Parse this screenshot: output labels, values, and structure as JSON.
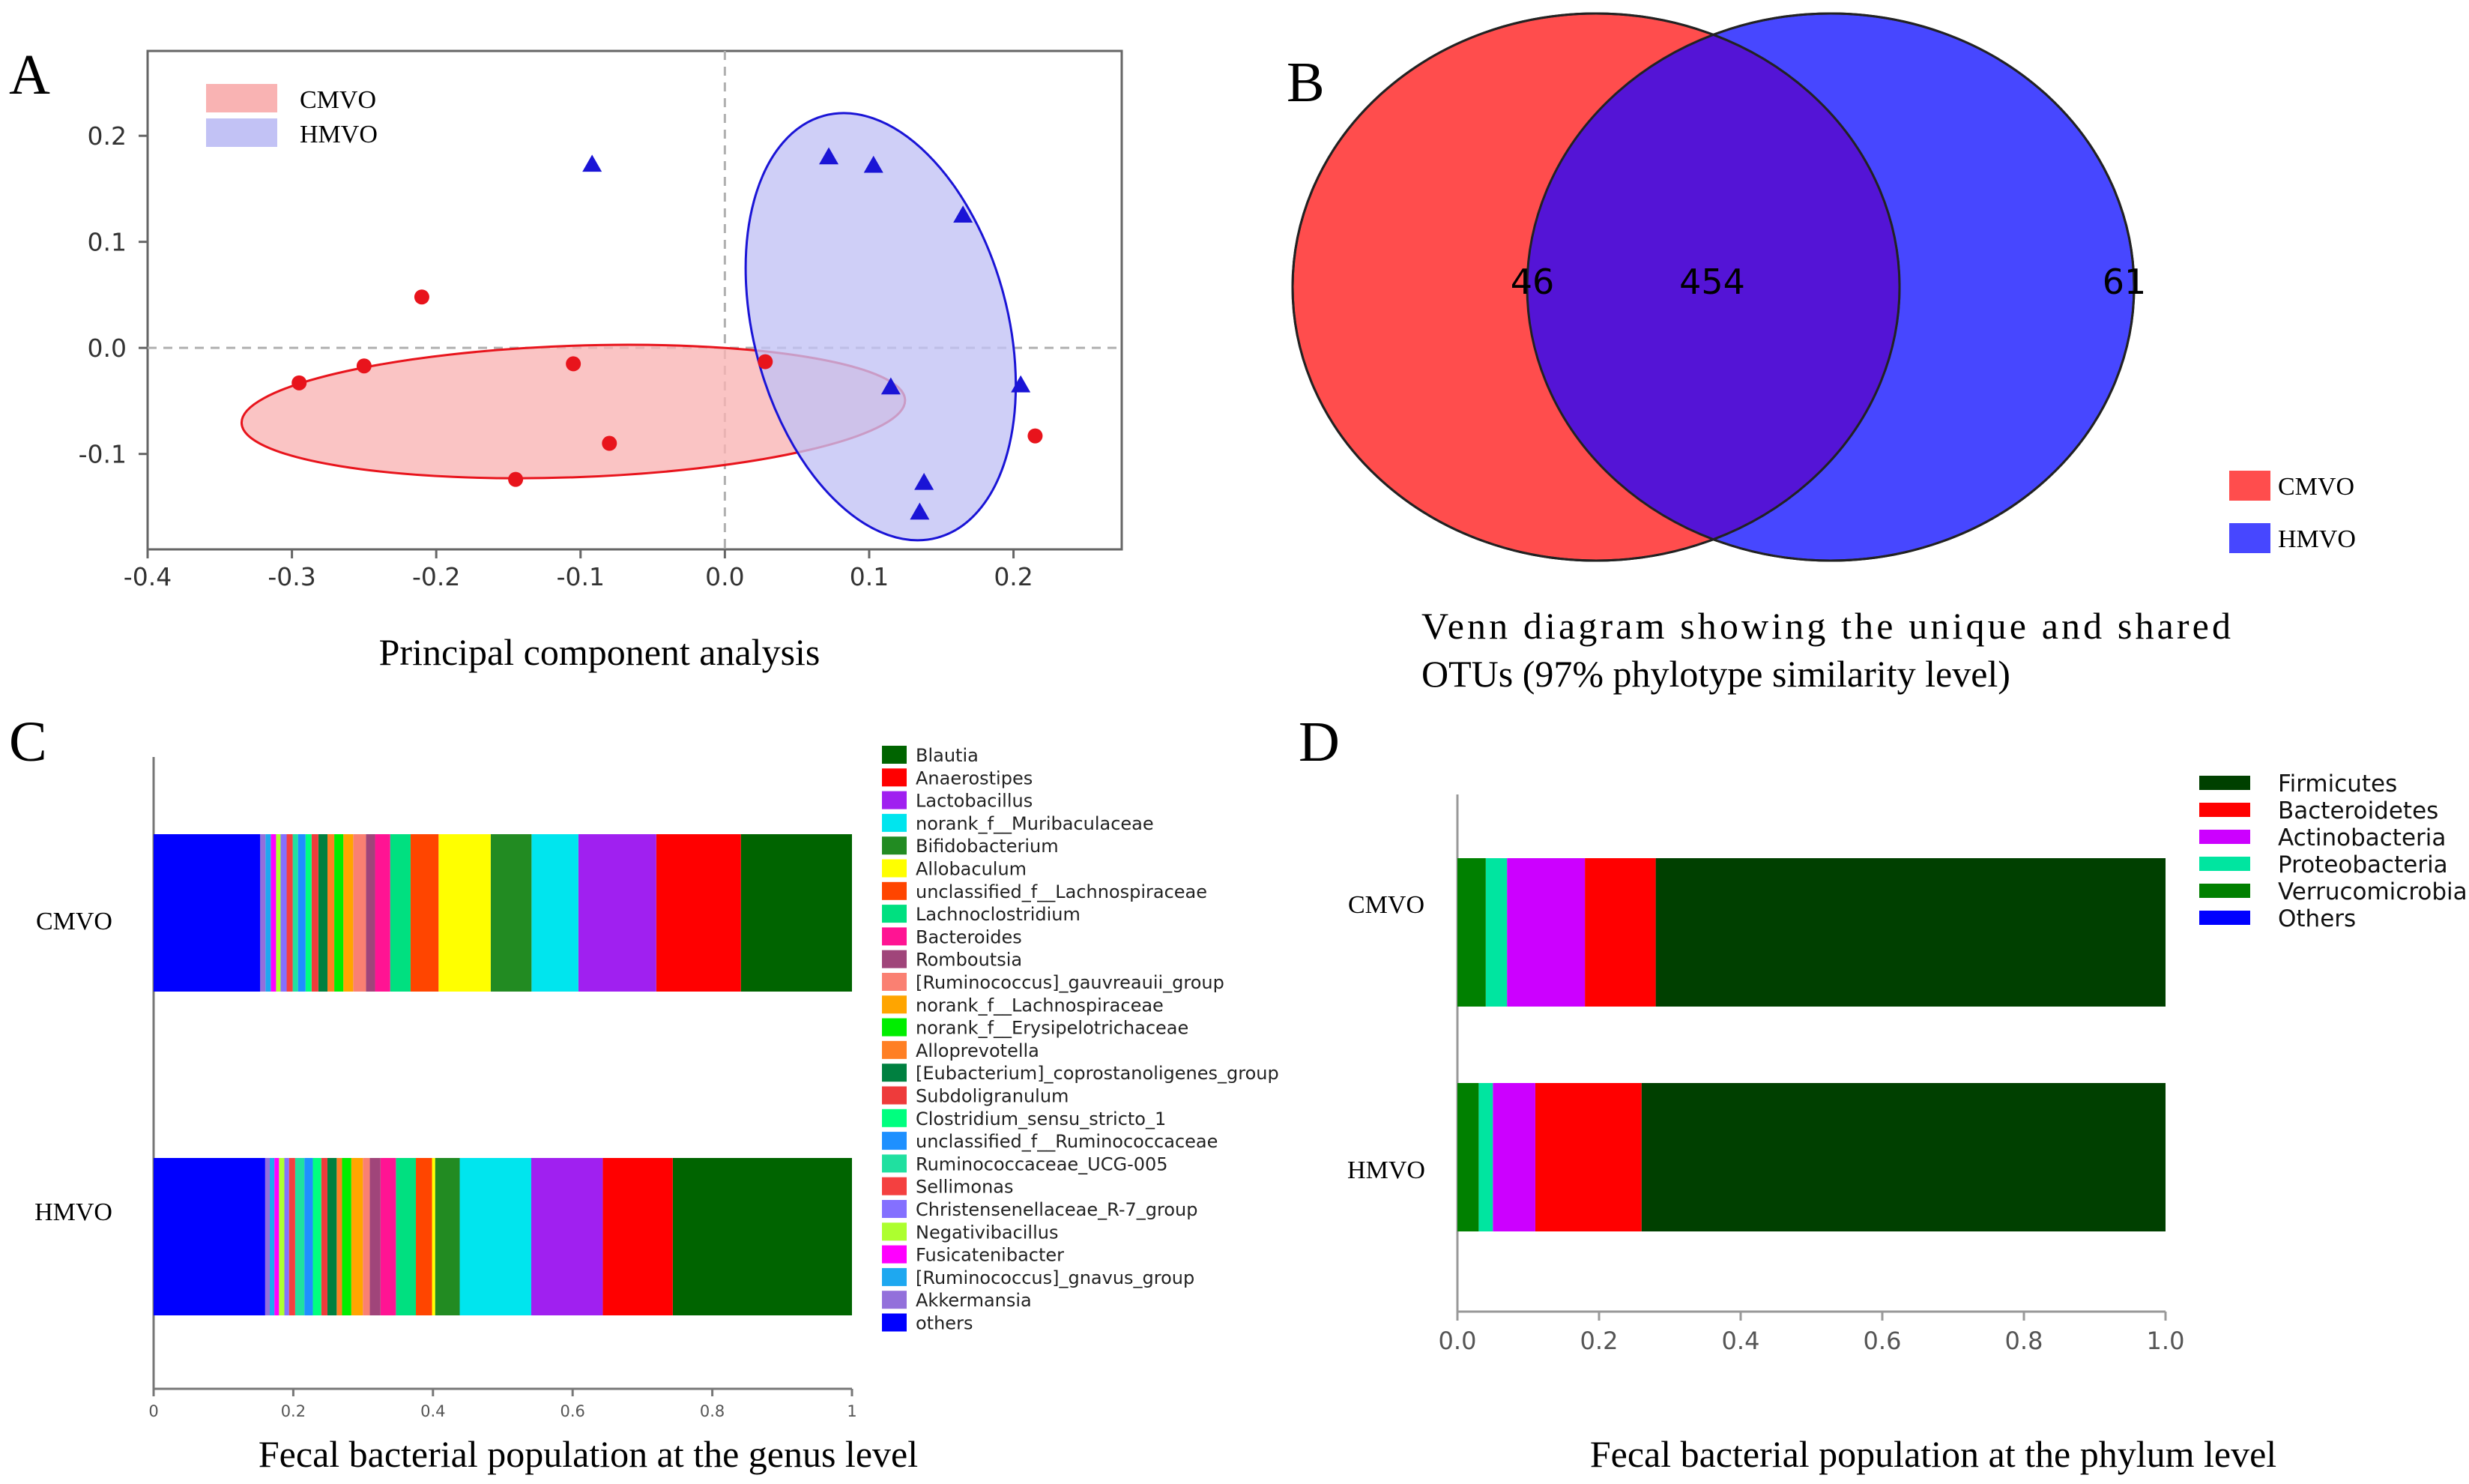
{
  "panels": {
    "A": {
      "letter": "A",
      "caption": "Principal  component  analysis",
      "legend": [
        {
          "label": "CMVO",
          "color": "#f9b3b3"
        },
        {
          "label": "HMVO",
          "color": "#c2c2f5"
        }
      ]
    },
    "B": {
      "letter": "B",
      "caption_line1": "Venn  diagram  showing  the  unique  and  shared",
      "caption_line2": "OTUs  (97%  phylotype  similarity  level)",
      "legend": [
        {
          "label": "CMVO",
          "color": "#ff4d4d"
        },
        {
          "label": "HMVO",
          "color": "#4747ff"
        }
      ]
    },
    "C": {
      "letter": "C",
      "caption": "Fecal  bacterial  population  at  the genus level"
    },
    "D": {
      "letter": "D",
      "caption": "Fecal bacterial population at the phylum level"
    }
  },
  "chart_data": [
    {
      "panel": "A",
      "type": "scatter",
      "title": "",
      "xlabel": "",
      "ylabel": "",
      "xlim": [
        -0.4,
        0.275
      ],
      "ylim": [
        -0.19,
        0.28
      ],
      "xticks": [
        "-0.4",
        "-0.3",
        "-0.2",
        "-0.1",
        "0.0",
        "0.1",
        "0.2"
      ],
      "yticks": [
        "0.2",
        "0.1",
        "0.0",
        "-0.1"
      ],
      "ytick_values": [
        0.2,
        0.1,
        0.0,
        -0.1
      ],
      "xtick_values": [
        -0.4,
        -0.3,
        -0.2,
        -0.1,
        0.0,
        0.1,
        0.2
      ],
      "series": [
        {
          "name": "CMVO",
          "marker": "circle",
          "color": "#e8141c",
          "points": [
            [
              -0.295,
              -0.033
            ],
            [
              -0.25,
              -0.017
            ],
            [
              -0.21,
              0.048
            ],
            [
              -0.105,
              -0.015
            ],
            [
              -0.08,
              -0.09
            ],
            [
              -0.145,
              -0.124
            ],
            [
              0.028,
              -0.013
            ],
            [
              0.215,
              -0.083
            ]
          ],
          "ellipse": {
            "cx": -0.105,
            "cy": -0.06,
            "rx": 0.23,
            "ry": 0.062,
            "angle_deg": -2,
            "fill": "#f9b3b3",
            "stroke": "#e8141c"
          }
        },
        {
          "name": "HMVO",
          "marker": "triangle",
          "color": "#1a14d6",
          "points": [
            [
              -0.092,
              0.173
            ],
            [
              0.072,
              0.18
            ],
            [
              0.103,
              0.172
            ],
            [
              0.165,
              0.125
            ],
            [
              0.115,
              -0.037
            ],
            [
              0.205,
              -0.035
            ],
            [
              0.138,
              -0.127
            ],
            [
              0.135,
              -0.155
            ]
          ],
          "ellipse": {
            "cx": 0.108,
            "cy": 0.02,
            "rx": 0.088,
            "ry": 0.206,
            "angle_deg": -15,
            "fill": "#c2c2f5",
            "stroke": "#1a14d6"
          }
        }
      ]
    },
    {
      "panel": "B",
      "type": "venn",
      "sets": [
        "CMVO",
        "HMVO"
      ],
      "values": {
        "CMVO_only": 46,
        "shared": 454,
        "HMVO_only": 61
      },
      "colors": {
        "CMVO": "#ff4d4d",
        "HMVO": "#4747ff",
        "overlap": "#5414d6"
      }
    },
    {
      "panel": "C",
      "type": "bar",
      "orientation": "horizontal",
      "stacked": true,
      "categories": [
        "CMVO",
        "HMVO"
      ],
      "xlim": [
        0,
        1
      ],
      "xticks": [
        "0",
        "0.2",
        "0.4",
        "0.6",
        "0.8",
        "1"
      ],
      "xtick_values": [
        0,
        0.2,
        0.4,
        0.6,
        0.8,
        1
      ],
      "series": [
        {
          "name": "Blautia",
          "color": "#006400",
          "values": [
            0.147,
            0.233
          ]
        },
        {
          "name": "Anaerostipes",
          "color": "#ff0000",
          "values": [
            0.112,
            0.091
          ]
        },
        {
          "name": "Lactobacillus",
          "color": "#a020f0",
          "values": [
            0.103,
            0.093
          ]
        },
        {
          "name": "norank_f__Muribaculaceae",
          "color": "#00e5ee",
          "values": [
            0.062,
            0.093
          ]
        },
        {
          "name": "Bifidobacterium",
          "color": "#228b22",
          "values": [
            0.054,
            0.032
          ]
        },
        {
          "name": "Allobaculum",
          "color": "#ffff00",
          "values": [
            0.069,
            0.004
          ]
        },
        {
          "name": "unclassified_f__Lachnospiraceae",
          "color": "#ff4500",
          "values": [
            0.037,
            0.021
          ]
        },
        {
          "name": "Lachnoclostridium",
          "color": "#00e080",
          "values": [
            0.027,
            0.026
          ]
        },
        {
          "name": "Bacteroides",
          "color": "#ff1493",
          "values": [
            0.02,
            0.02
          ]
        },
        {
          "name": "Romboutsia",
          "color": "#a0457a",
          "values": [
            0.012,
            0.014
          ]
        },
        {
          "name": "[Ruminococcus]_gauvreauii_group",
          "color": "#fa8072",
          "values": [
            0.017,
            0.009
          ]
        },
        {
          "name": "norank_f__Lachnospiraceae",
          "color": "#ffa500",
          "values": [
            0.013,
            0.015
          ]
        },
        {
          "name": "norank_f__Erysipelotrichaceae",
          "color": "#00ee00",
          "values": [
            0.012,
            0.012
          ]
        },
        {
          "name": "Alloprevotella",
          "color": "#ff7f24",
          "values": [
            0.009,
            0.007
          ]
        },
        {
          "name": "[Eubacterium]_coprostanoligenes_group",
          "color": "#008040",
          "values": [
            0.012,
            0.012
          ]
        },
        {
          "name": "Subdoligranulum",
          "color": "#ee3b3b",
          "values": [
            0.009,
            0.008
          ]
        },
        {
          "name": "Clostridium_sensu_stricto_1",
          "color": "#00ff7f",
          "values": [
            0.008,
            0.011
          ]
        },
        {
          "name": "unclassified_f__Ruminococcaceae",
          "color": "#1e90ff",
          "values": [
            0.01,
            0.011
          ]
        },
        {
          "name": "Ruminococcaceae_UCG-005",
          "color": "#20e0a0",
          "values": [
            0.007,
            0.012
          ]
        },
        {
          "name": "Sellimonas",
          "color": "#f44040",
          "values": [
            0.008,
            0.008
          ]
        },
        {
          "name": "Christensenellaceae_R-7_group",
          "color": "#8470ff",
          "values": [
            0.008,
            0.006
          ]
        },
        {
          "name": "Negativibacillus",
          "color": "#adff2f",
          "values": [
            0.006,
            0.007
          ]
        },
        {
          "name": "Fusicatenibacter",
          "color": "#ff00ff",
          "values": [
            0.007,
            0.006
          ]
        },
        {
          "name": "[Ruminococcus]_gnavus_group",
          "color": "#1ea8f0",
          "values": [
            0.007,
            0.006
          ]
        },
        {
          "name": "Akkermansia",
          "color": "#9370db",
          "values": [
            0.007,
            0.006
          ]
        },
        {
          "name": "others",
          "color": "#0000ff",
          "values": [
            0.141,
            0.145
          ]
        }
      ]
    },
    {
      "panel": "D",
      "type": "bar",
      "orientation": "horizontal",
      "stacked": true,
      "categories": [
        "CMVO",
        "HMVO"
      ],
      "xlim": [
        0,
        1
      ],
      "xticks": [
        "0.0",
        "0.2",
        "0.4",
        "0.6",
        "0.8",
        "1.0"
      ],
      "xtick_values": [
        0,
        0.2,
        0.4,
        0.6,
        0.8,
        1.0
      ],
      "series": [
        {
          "name": "Firmicutes",
          "color": "#004000",
          "values": [
            0.72,
            0.74
          ]
        },
        {
          "name": "Bacteroidetes",
          "color": "#ff0000",
          "values": [
            0.1,
            0.15
          ]
        },
        {
          "name": "Actinobacteria",
          "color": "#cc00ff",
          "values": [
            0.11,
            0.06
          ]
        },
        {
          "name": "Proteobacteria",
          "color": "#00e5a0",
          "values": [
            0.03,
            0.02
          ]
        },
        {
          "name": "Verrucomicrobia",
          "color": "#008000",
          "values": [
            0.04,
            0.03
          ]
        },
        {
          "name": "Others",
          "color": "#0000ff",
          "values": [
            0.0,
            0.0
          ]
        }
      ]
    }
  ]
}
